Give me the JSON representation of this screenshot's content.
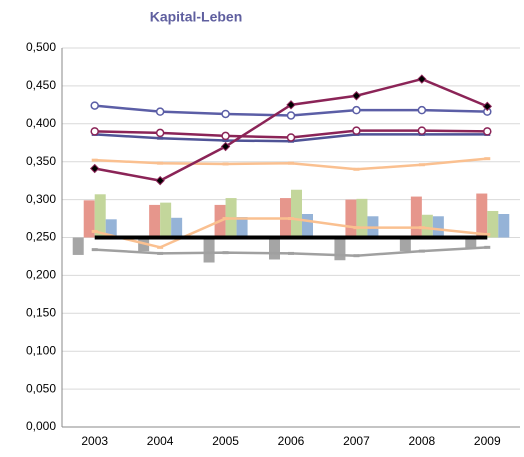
{
  "chart_data": {
    "type": "combo",
    "title": "Kapital-Leben",
    "categories": [
      "2003",
      "2004",
      "2005",
      "2006",
      "2007",
      "2008",
      "2009"
    ],
    "ylim": [
      0,
      0.5
    ],
    "yticks": [
      {
        "value": 0,
        "label": "0,000"
      },
      {
        "value": 0.05,
        "label": "0,050"
      },
      {
        "value": 0.1,
        "label": "0,100"
      },
      {
        "value": 0.15,
        "label": "0,150"
      },
      {
        "value": 0.2,
        "label": "0,200"
      },
      {
        "value": 0.25,
        "label": "0,250"
      },
      {
        "value": 0.3,
        "label": "0,300"
      },
      {
        "value": 0.35,
        "label": "0,350"
      },
      {
        "value": 0.4,
        "label": "0,400"
      },
      {
        "value": 0.45,
        "label": "0,450"
      },
      {
        "value": 0.5,
        "label": "0,500"
      }
    ],
    "grid": true,
    "bar_baseline": 0.25,
    "series": [
      {
        "type": "bar",
        "color": "#a5a5a5",
        "values": [
          0.227,
          0.232,
          0.217,
          0.221,
          0.22,
          0.232,
          0.236
        ]
      },
      {
        "type": "bar",
        "color": "#e6968c",
        "values": [
          0.299,
          0.293,
          0.293,
          0.302,
          0.3,
          0.304,
          0.308
        ]
      },
      {
        "type": "bar",
        "color": "#c3d69b",
        "values": [
          0.307,
          0.296,
          0.302,
          0.313,
          0.301,
          0.28,
          0.285
        ]
      },
      {
        "type": "bar",
        "color": "#95b3d7",
        "values": [
          0.274,
          0.276,
          0.277,
          0.281,
          0.278,
          0.278,
          0.281
        ]
      },
      {
        "type": "line",
        "color": "#a0a0a0",
        "marker": "dash",
        "values": [
          0.234,
          0.229,
          0.23,
          0.229,
          0.226,
          0.232,
          0.237
        ]
      },
      {
        "type": "line",
        "color": "#fac090",
        "marker": "dash",
        "values": [
          0.258,
          0.237,
          0.275,
          0.275,
          0.263,
          0.263,
          0.254
        ]
      },
      {
        "type": "line",
        "color": "#000000",
        "width": 4,
        "values": [
          0.25,
          0.25,
          0.25,
          0.25,
          0.25,
          0.25,
          0.25
        ]
      },
      {
        "type": "line",
        "color": "#fac090",
        "marker": "dash",
        "values": [
          0.352,
          0.348,
          0.347,
          0.348,
          0.34,
          0.346,
          0.354
        ]
      },
      {
        "type": "line",
        "color": "#5b5ea6",
        "marker": "circle",
        "values": [
          0.424,
          0.416,
          0.413,
          0.411,
          0.418,
          0.418,
          0.416
        ]
      },
      {
        "type": "line",
        "color": "#4f5396",
        "marker": "dash",
        "values": [
          0.386,
          0.381,
          0.378,
          0.377,
          0.386,
          0.386,
          0.386
        ]
      },
      {
        "type": "line",
        "color": "#8b2457",
        "marker": "circle",
        "values": [
          0.39,
          0.388,
          0.384,
          0.382,
          0.391,
          0.391,
          0.39
        ]
      },
      {
        "type": "line",
        "color": "#8b2457",
        "marker": "diamond",
        "values": [
          0.341,
          0.325,
          0.37,
          0.425,
          0.437,
          0.459,
          0.423
        ]
      }
    ]
  }
}
